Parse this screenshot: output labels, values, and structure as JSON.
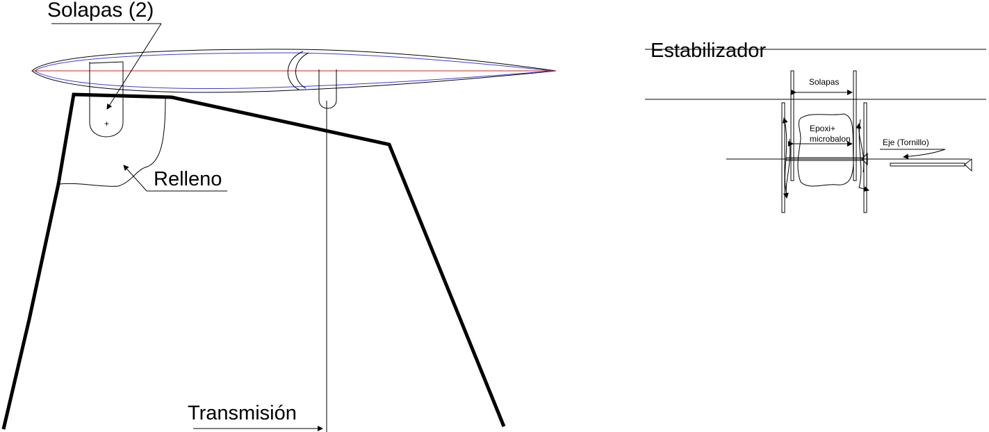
{
  "labels": {
    "solapas_2": "Solapas (2)",
    "relleno": "Relleno",
    "transmision": "Transmisión",
    "estabilizador": "Estabilizador",
    "solapas": "Solapas",
    "epoxi_line1": "Epoxi+",
    "epoxi_line2": "microbalon",
    "eje": "Eje (Tornillo)"
  },
  "colors": {
    "airfoil_outer": "#000000",
    "airfoil_inner": "#3b3bd6",
    "chord_line": "#d42020",
    "pylon": "#111111"
  }
}
